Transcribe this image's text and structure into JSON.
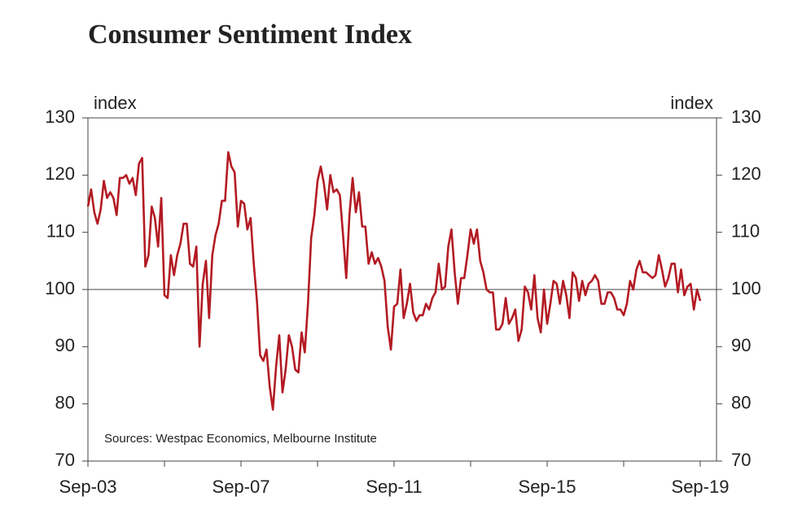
{
  "chart_data": {
    "type": "line",
    "title": "Consumer Sentiment Index",
    "y_label": "index",
    "y2_label": "index",
    "annotation": "Sources: Westpac Economics, Melbourne Institute",
    "color": "#b31b23",
    "title_color": "#e0141e",
    "reference_line": 100,
    "ylim": [
      70,
      130
    ],
    "yticks": [
      70,
      80,
      90,
      100,
      110,
      120,
      130
    ],
    "y2lim": [
      70,
      130
    ],
    "y2ticks": [
      70,
      80,
      90,
      100,
      110,
      120,
      130
    ],
    "categories": [
      "Sep-03",
      null,
      null,
      null,
      null,
      null,
      null,
      null,
      null,
      null,
      null,
      null,
      null,
      null,
      null,
      null,
      null,
      null,
      null,
      null,
      null,
      null,
      null,
      null,
      null,
      null,
      null,
      null,
      null,
      null,
      null,
      null,
      null,
      null,
      null,
      null,
      null,
      null,
      null,
      null,
      null,
      null,
      null,
      null,
      null,
      null,
      null,
      null,
      "Sep-07",
      null,
      null,
      null,
      null,
      null,
      null,
      null,
      null,
      null,
      null,
      null,
      null,
      null,
      null,
      null,
      null,
      null,
      null,
      null,
      null,
      null,
      null,
      null,
      null,
      null,
      null,
      null,
      null,
      null,
      null,
      null,
      null,
      null,
      null,
      null,
      null,
      null,
      null,
      null,
      null,
      null,
      null,
      null,
      null,
      null,
      null,
      null,
      "Sep-11",
      null,
      null,
      null,
      null,
      null,
      null,
      null,
      null,
      null,
      null,
      null,
      null,
      null,
      null,
      null,
      null,
      null,
      null,
      null,
      null,
      null,
      null,
      null,
      null,
      null,
      null,
      null,
      null,
      null,
      null,
      null,
      null,
      null,
      null,
      null,
      null,
      null,
      null,
      null,
      null,
      null,
      null,
      null,
      null,
      null,
      null,
      null,
      "Sep-15",
      null,
      null,
      null,
      null,
      null,
      null,
      null,
      null,
      null,
      null,
      null,
      null,
      null,
      null,
      null,
      null,
      null,
      null,
      null,
      null,
      null,
      null,
      null,
      null,
      null,
      null,
      null,
      null,
      null,
      null,
      null,
      null,
      null,
      null,
      null,
      null,
      null,
      null,
      null,
      null,
      null,
      null,
      null,
      null,
      null,
      null,
      null,
      "Sep-19"
    ],
    "values": [
      114.5,
      117.5,
      113.5,
      111.5,
      114,
      119,
      116,
      117,
      116,
      113,
      119.5,
      119.5,
      120,
      118.5,
      119.5,
      116.5,
      122,
      123,
      104,
      106,
      114.5,
      112.5,
      107.5,
      116,
      99,
      98.5,
      106,
      102.5,
      106,
      108,
      111.5,
      111.5,
      104.5,
      104,
      107.5,
      90,
      101,
      105,
      95,
      106,
      109.5,
      111.5,
      115.5,
      115.5,
      124,
      121.5,
      120.5,
      111,
      115.5,
      115,
      110.5,
      112.5,
      104.5,
      98,
      88.5,
      87.5,
      89.5,
      83,
      79,
      86.5,
      92,
      82,
      86,
      92,
      90,
      86,
      85.5,
      92.5,
      89,
      97.5,
      109,
      113,
      119,
      121.5,
      118.5,
      114,
      120,
      117,
      117.5,
      116.5,
      109.5,
      102,
      113,
      119.5,
      113.5,
      117,
      111,
      111,
      104.5,
      106.5,
      104.5,
      105.5,
      104,
      101.5,
      93.5,
      89.5,
      97,
      97.5,
      103.5,
      95,
      97.5,
      101,
      96,
      94.5,
      95.5,
      95.5,
      97.5,
      96.5,
      98.5,
      99.5,
      104.5,
      100,
      100.5,
      107.5,
      110.5,
      103,
      97.5,
      102,
      102,
      106,
      110.5,
      108,
      110.5,
      105,
      103,
      100,
      99.5,
      99.5,
      93,
      93,
      94,
      98.5,
      94,
      95,
      96.5,
      91,
      93,
      100.5,
      99.5,
      96.5,
      102.5,
      95,
      92.5,
      100,
      94,
      97.5,
      101.5,
      101,
      97.5,
      101.5,
      99,
      95,
      103,
      102,
      98,
      101.5,
      99,
      101,
      101.5,
      102.5,
      101.5,
      97.5,
      97.5,
      99.5,
      99.5,
      98.5,
      96.5,
      96.5,
      95.5,
      97.5,
      101.5,
      100,
      103.5,
      105,
      103,
      103,
      102.5,
      102,
      102.5,
      106,
      103.5,
      100.5,
      102,
      104.5,
      104.5,
      99.5,
      103.5,
      99,
      100.5,
      101,
      96.5,
      100,
      98
    ]
  }
}
